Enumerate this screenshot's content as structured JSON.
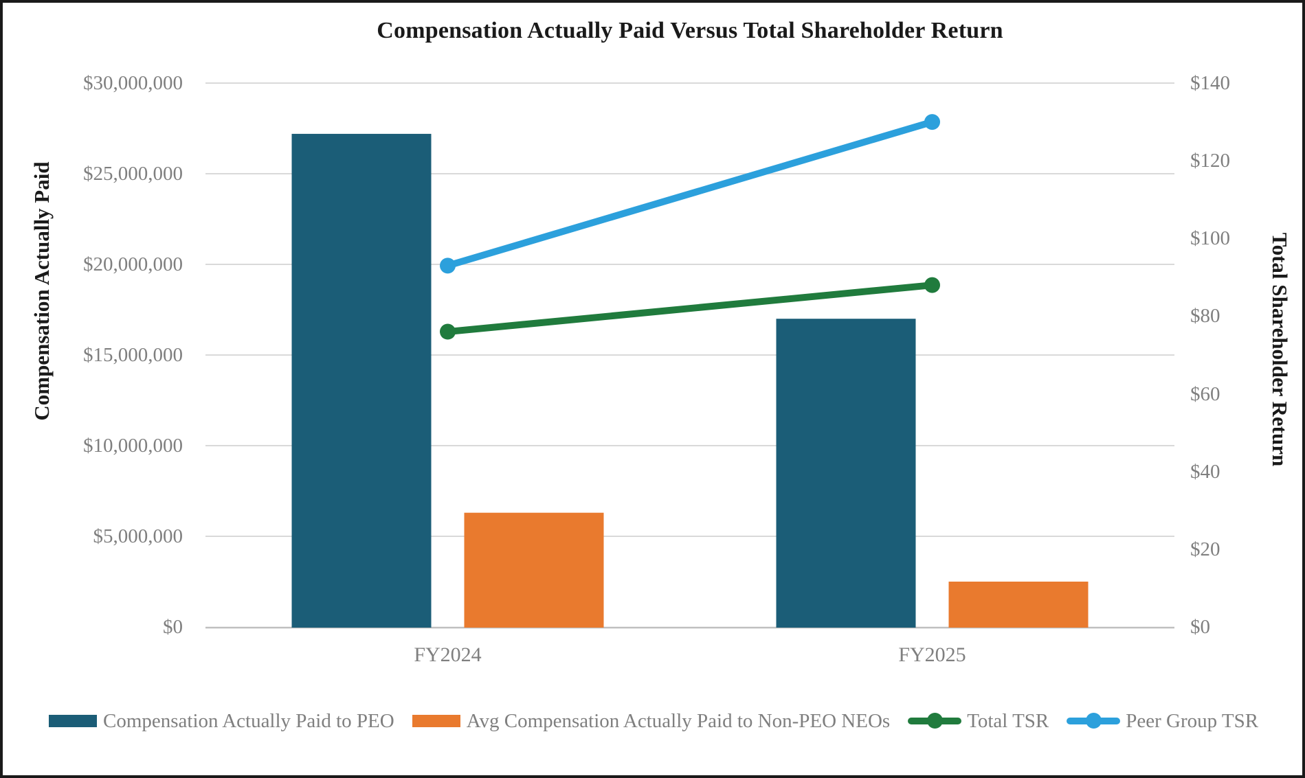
{
  "chart_data": {
    "type": "bar+line-combo",
    "title": "Compensation Actually Paid Versus Total Shareholder Return",
    "ylabel_left": "Compensation Actually Paid",
    "ylabel_right": "Total Shareholder Return",
    "categories": [
      "FY2024",
      "FY2025"
    ],
    "series": [
      {
        "name": "Compensation Actually Paid to PEO",
        "type": "bar",
        "axis": "left",
        "color": "#1B5D77",
        "values": [
          27200000,
          17000000
        ]
      },
      {
        "name": "Avg Compensation Actually Paid to Non-PEO NEOs",
        "type": "bar",
        "axis": "left",
        "color": "#E97A2E",
        "values": [
          6300000,
          2500000
        ]
      },
      {
        "name": "Total TSR",
        "type": "line",
        "axis": "right",
        "color": "#207B3D",
        "values": [
          76,
          88
        ]
      },
      {
        "name": "Peer Group TSR",
        "type": "line",
        "axis": "right",
        "color": "#2CA0DC",
        "values": [
          93,
          130
        ]
      }
    ],
    "ylim_left": [
      0,
      30000000
    ],
    "ylim_right": [
      0,
      140
    ],
    "left_ticks": [
      {
        "label": "$0",
        "value": 0
      },
      {
        "label": "$5,000,000",
        "value": 5000000
      },
      {
        "label": "$10,000,000",
        "value": 10000000
      },
      {
        "label": "$15,000,000",
        "value": 15000000
      },
      {
        "label": "$20,000,000",
        "value": 20000000
      },
      {
        "label": "$25,000,000",
        "value": 25000000
      },
      {
        "label": "$30,000,000",
        "value": 30000000
      }
    ],
    "right_ticks": [
      {
        "label": "$0",
        "value": 0
      },
      {
        "label": "$20",
        "value": 20
      },
      {
        "label": "$40",
        "value": 40
      },
      {
        "label": "$60",
        "value": 60
      },
      {
        "label": "$80",
        "value": 80
      },
      {
        "label": "$100",
        "value": 100
      },
      {
        "label": "$120",
        "value": 120
      },
      {
        "label": "$140",
        "value": 140
      }
    ],
    "legend_position": "bottom",
    "grid": "horizontal",
    "colors": {
      "gridline": "#D9D9D9",
      "baseline": "#BFBFBF",
      "tick_text": "#7F7F7F",
      "title_text": "#1A1A1A"
    }
  }
}
